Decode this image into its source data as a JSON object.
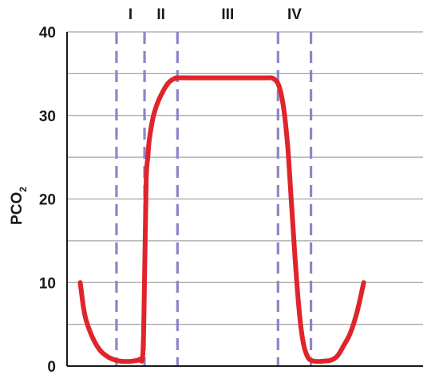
{
  "chart_data": {
    "type": "line",
    "ylabel": {
      "main": "PCO",
      "subscript": "2"
    },
    "ylim": [
      0,
      40
    ],
    "yticks": [
      0,
      10,
      20,
      30,
      40
    ],
    "grid": true,
    "phases": [
      {
        "label": "I",
        "start": 1.5,
        "end": 2.35
      },
      {
        "label": "II",
        "start": 2.35,
        "end": 3.35
      },
      {
        "label": "III",
        "start": 3.35,
        "end": 6.4
      },
      {
        "label": "IV",
        "start": 6.4,
        "end": 7.4
      }
    ],
    "series": [
      {
        "color": "#e0242b",
        "x": [
          0.4,
          0.5,
          0.6,
          0.8,
          1.0,
          1.2,
          1.4,
          1.6,
          1.8,
          2.0,
          2.2,
          2.3,
          2.35,
          2.4,
          2.45,
          2.5,
          2.6,
          2.7,
          2.8,
          2.9,
          3.0,
          3.1,
          3.2,
          3.3,
          3.35,
          4.0,
          5.0,
          6.0,
          6.2,
          6.3,
          6.4,
          6.5,
          6.6,
          6.7,
          6.8,
          6.9,
          7.0,
          7.1,
          7.2,
          7.3,
          7.4,
          7.6,
          7.8,
          8.0,
          8.2,
          8.4,
          8.6,
          8.8,
          9.0
        ],
        "y": [
          10,
          7,
          5.2,
          3.2,
          1.9,
          1.2,
          0.8,
          0.6,
          0.55,
          0.6,
          0.8,
          1.5,
          10,
          22,
          25,
          27.2,
          29.6,
          31.0,
          32.0,
          32.8,
          33.5,
          34.0,
          34.3,
          34.45,
          34.5,
          34.5,
          34.5,
          34.5,
          34.5,
          34.3,
          33.8,
          32.5,
          30,
          26,
          20,
          14,
          8.5,
          4.5,
          2.2,
          1.1,
          0.7,
          0.55,
          0.6,
          0.7,
          1.2,
          2.5,
          4.0,
          6.5,
          10
        ]
      }
    ]
  }
}
